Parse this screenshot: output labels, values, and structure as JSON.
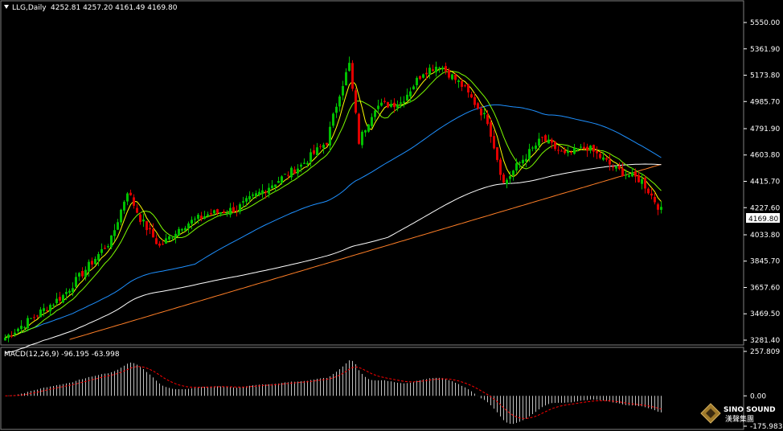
{
  "header": {
    "symbol": "LLG,Daily",
    "ohlc": "4252.81 4257.20 4161.49 4169.80"
  },
  "price_axis": {
    "ticks": [
      "5550.00",
      "5361.90",
      "5173.80",
      "4985.70",
      "4791.90",
      "4603.80",
      "4415.70",
      "4227.60",
      "4033.80",
      "3845.70",
      "3657.60",
      "3469.50",
      "3281.40"
    ],
    "current_price": "4169.80"
  },
  "macd_panel": {
    "label": "MACD(12,26,9) -96.195 -63.998",
    "ticks": [
      "257.809",
      "0.00",
      "-175.983"
    ]
  },
  "logo": {
    "name": "SINO SOUND",
    "chinese": "漢聲集團"
  },
  "colors": {
    "background": "#000000",
    "bull_candle": "#00c000",
    "bear_candle": "#e00000",
    "ma_short": "#ffff00",
    "ma_mid": "#7cfc00",
    "ma_60": "#1e90ff",
    "ma_120": "#ffffff",
    "ma_250": "#ff7f27",
    "macd_hist": "#c0c0c0",
    "macd_signal": "#ff0000"
  },
  "chart_data": {
    "type": "candlestick",
    "y_range": [
      3281.4,
      5550.0
    ],
    "last_close": 4169.8,
    "indicator": "MACD(12,26,9)",
    "macd_range": [
      -175.983,
      257.809
    ],
    "macd_values": [
      -96.195,
      -63.998
    ],
    "series": [
      {
        "name": "MA short",
        "color": "#ffff00"
      },
      {
        "name": "MA mid",
        "color": "#7cfc00"
      },
      {
        "name": "MA 60",
        "color": "#1e90ff"
      },
      {
        "name": "MA 120",
        "color": "#ffffff"
      },
      {
        "name": "MA 250",
        "color": "#ff7f27"
      }
    ]
  }
}
